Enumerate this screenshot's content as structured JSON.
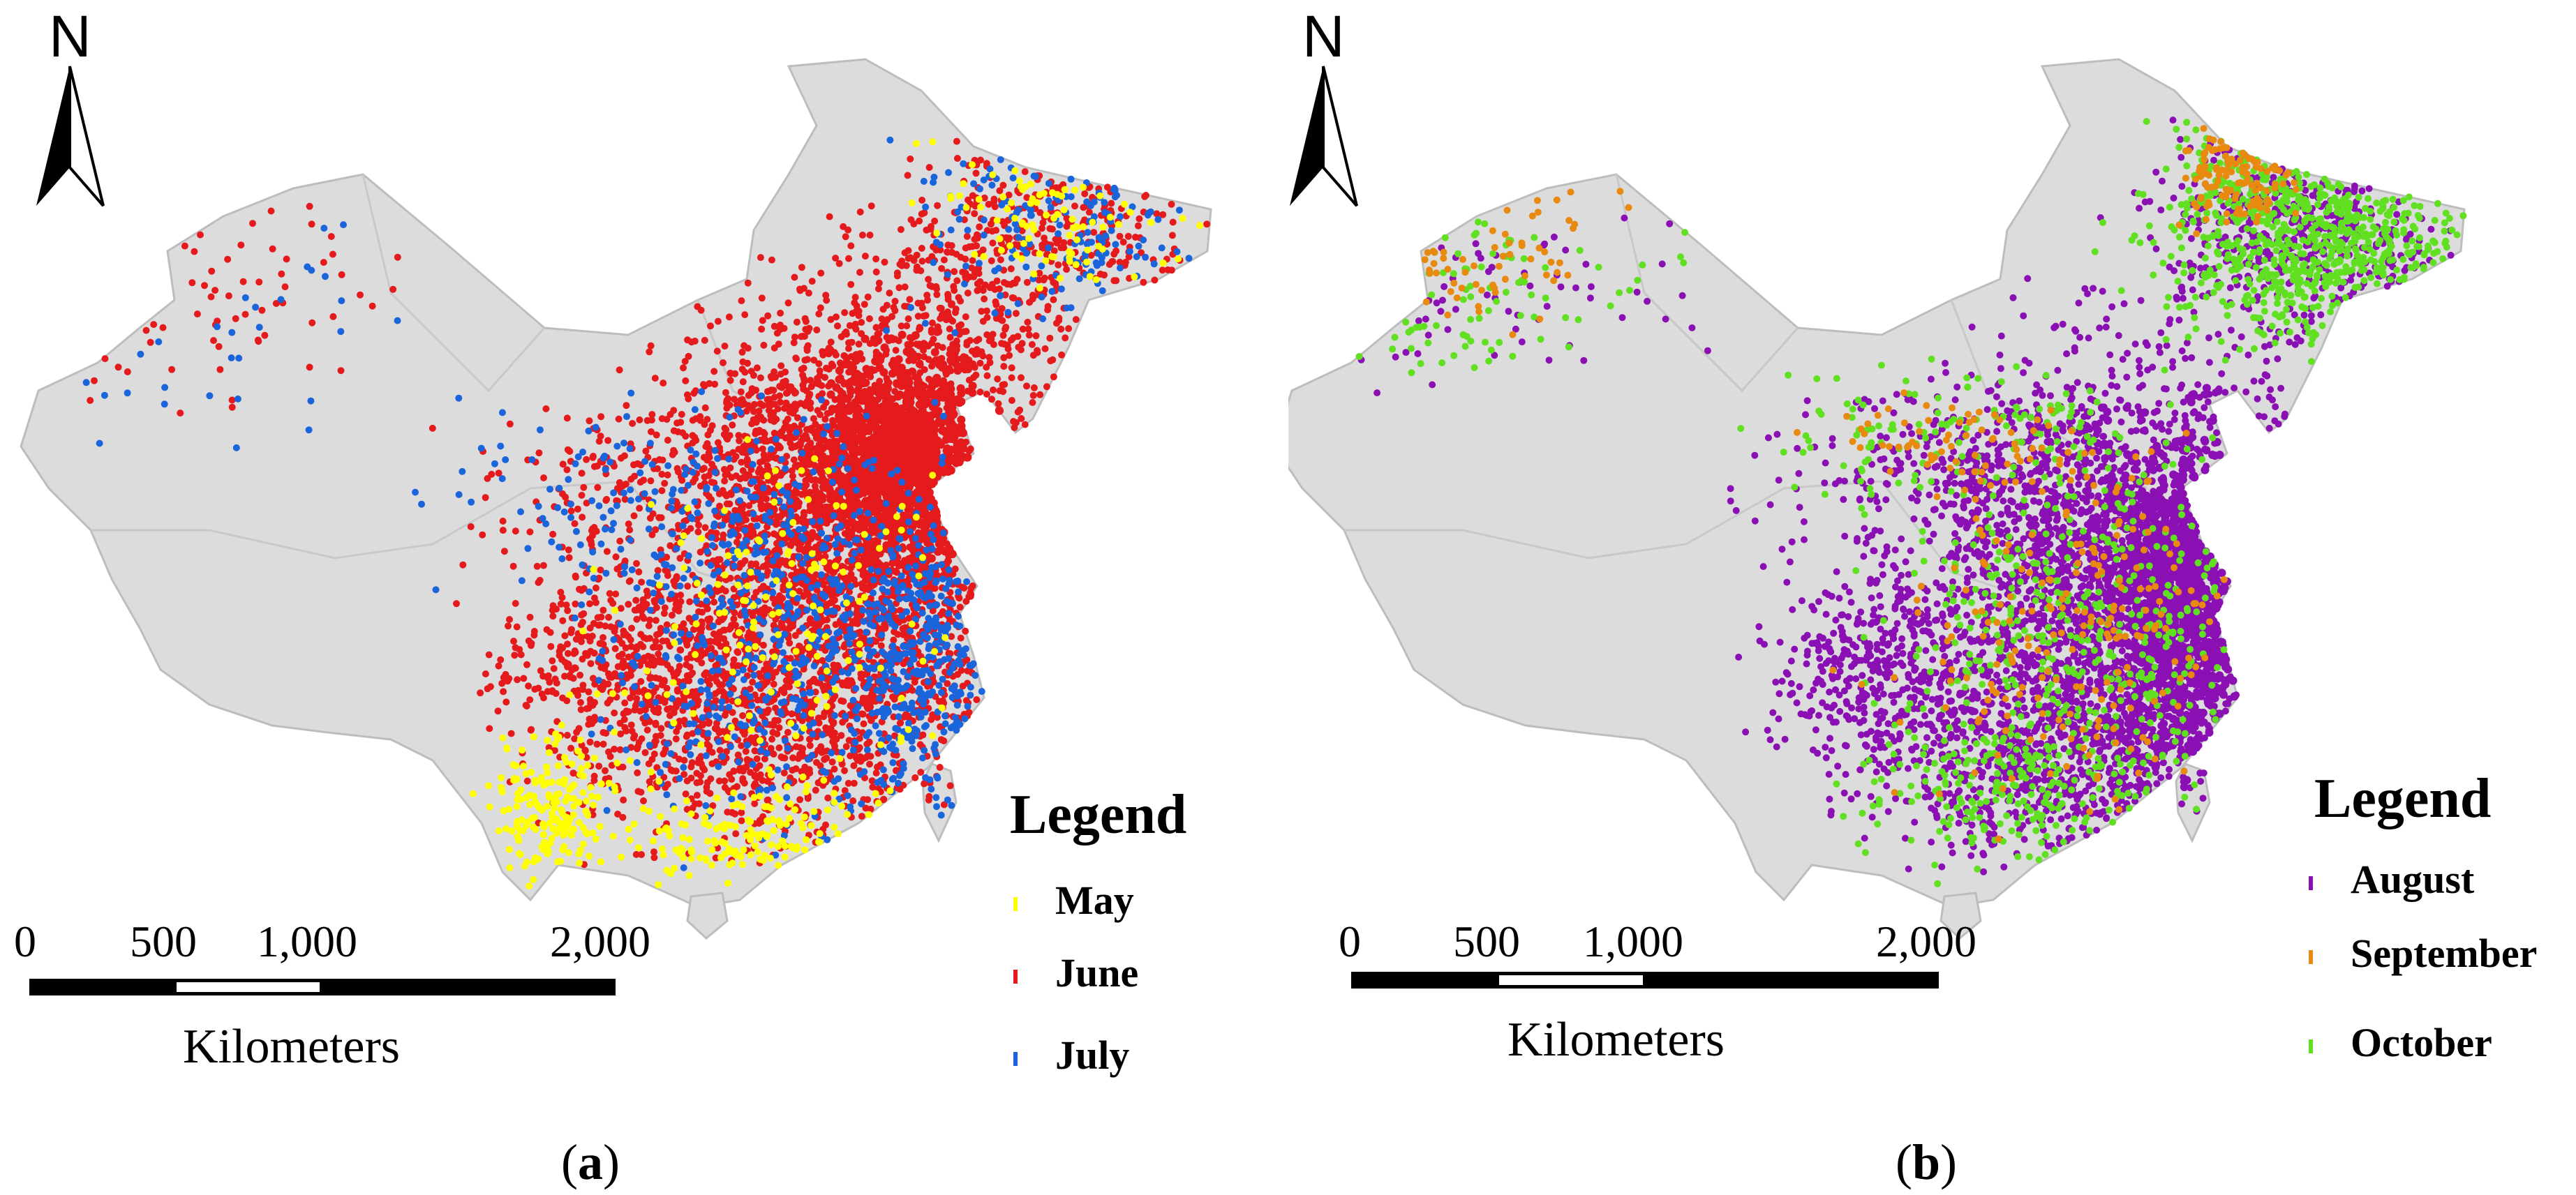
{
  "panels": [
    {
      "north_label": "N",
      "caption_letter": "a",
      "legend_title": "Legend",
      "legend_items": [
        {
          "label": "May",
          "color": "#ffff00"
        },
        {
          "label": "June",
          "color": "#e41a1c"
        },
        {
          "label": "July",
          "color": "#1a64dc"
        }
      ],
      "scale": {
        "ticks": [
          "0",
          "500",
          "1,000",
          "2,000"
        ],
        "unit": "Kilometers"
      }
    },
    {
      "north_label": "N",
      "caption_letter": "b",
      "legend_title": "Legend",
      "legend_items": [
        {
          "label": "August",
          "color": "#8b10b4"
        },
        {
          "label": "September",
          "color": "#e88a10"
        },
        {
          "label": "October",
          "color": "#60e020"
        }
      ],
      "scale": {
        "ticks": [
          "0",
          "500",
          "1,000",
          "2,000"
        ],
        "unit": "Kilometers"
      }
    }
  ],
  "map_fill_color": "#dcdcdc",
  "map_border_color": "#bdbdbd"
}
